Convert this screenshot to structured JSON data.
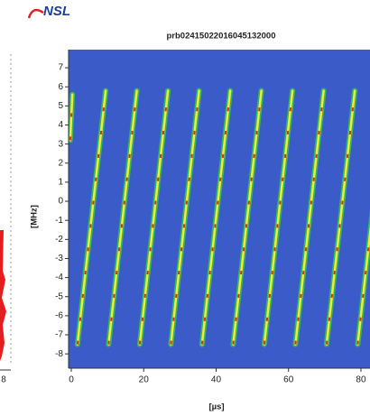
{
  "logo": "NSL",
  "left_panel": {
    "tick": "8"
  },
  "chart_data": {
    "type": "spectrogram",
    "title": "prb02415022016045132000",
    "x_label": "[µs]",
    "y_label": "[MHz]",
    "xlim": [
      -0.75,
      82.5
    ],
    "ylim": [
      -8.75,
      7.95
    ],
    "xticks": [
      0,
      20,
      40,
      60,
      80
    ],
    "yticks": [
      -8,
      -7,
      -6,
      -5,
      -4,
      -3,
      -2,
      -1,
      0,
      1,
      2,
      3,
      4,
      5,
      6,
      7
    ],
    "background": "#3b5bc9",
    "segments": [
      {
        "x": [
          -0.3,
          0.3
        ],
        "y": [
          3.2,
          5.6
        ]
      },
      {
        "x": [
          1.7,
          9.5
        ],
        "y": [
          -7.5,
          5.8
        ]
      },
      {
        "x": [
          10.3,
          18.1
        ],
        "y": [
          -7.5,
          5.8
        ]
      },
      {
        "x": [
          18.9,
          26.7
        ],
        "y": [
          -7.5,
          5.8
        ]
      },
      {
        "x": [
          27.5,
          35.3
        ],
        "y": [
          -7.5,
          5.8
        ]
      },
      {
        "x": [
          36.1,
          43.9
        ],
        "y": [
          -7.5,
          5.8
        ]
      },
      {
        "x": [
          44.7,
          52.5
        ],
        "y": [
          -7.5,
          5.8
        ]
      },
      {
        "x": [
          53.3,
          61.1
        ],
        "y": [
          -7.5,
          5.8
        ]
      },
      {
        "x": [
          61.9,
          69.7
        ],
        "y": [
          -7.5,
          5.8
        ]
      },
      {
        "x": [
          70.5,
          78.3
        ],
        "y": [
          -7.5,
          5.8
        ]
      },
      {
        "x": [
          79.1,
          86.9
        ],
        "y": [
          -7.5,
          5.8
        ]
      }
    ]
  }
}
